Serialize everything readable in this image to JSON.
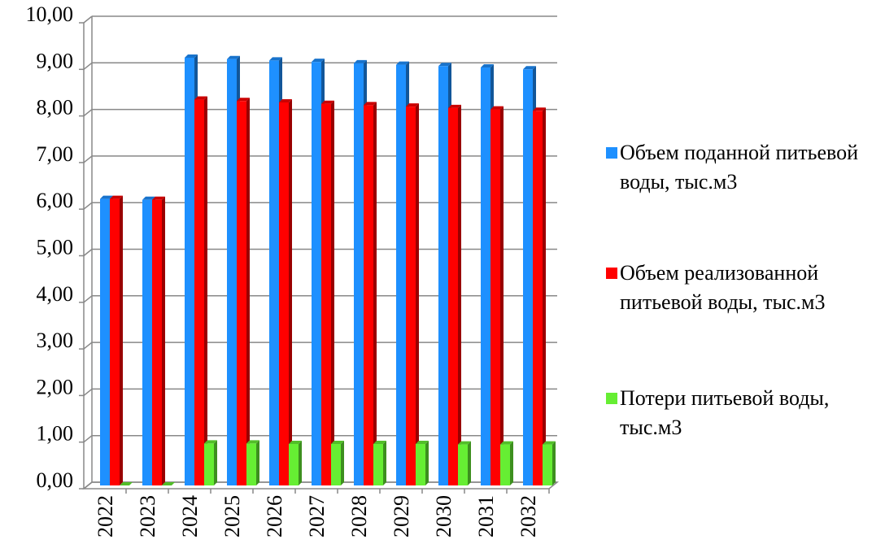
{
  "chart_data": {
    "type": "bar",
    "categories": [
      "2022",
      "2023",
      "2024",
      "2025",
      "2026",
      "2027",
      "2028",
      "2029",
      "2030",
      "2031",
      "2032"
    ],
    "series": [
      {
        "name": "Объем поданной питьевой воды, тыс.м3",
        "color": "#1e90ff",
        "values": [
          6.15,
          6.13,
          9.18,
          9.15,
          9.12,
          9.09,
          9.06,
          9.03,
          9.0,
          8.97,
          8.93
        ]
      },
      {
        "name": "Объем реализованной питьевой воды, тыс.м3",
        "color": "#ff0000",
        "values": [
          6.15,
          6.13,
          8.28,
          8.25,
          8.22,
          8.19,
          8.16,
          8.13,
          8.1,
          8.07,
          8.04
        ]
      },
      {
        "name": "Потери питьевой воды, тыс.м3",
        "color": "#66ee33",
        "values": [
          0,
          0,
          0.9,
          0.9,
          0.89,
          0.89,
          0.89,
          0.89,
          0.88,
          0.88,
          0.88
        ]
      }
    ],
    "ylim": [
      0,
      10
    ],
    "yticks": [
      {
        "value": 0,
        "label": "0,00"
      },
      {
        "value": 1,
        "label": "1,00"
      },
      {
        "value": 2,
        "label": "2,00"
      },
      {
        "value": 3,
        "label": "3,00"
      },
      {
        "value": 4,
        "label": "4,00"
      },
      {
        "value": 5,
        "label": "5,00"
      },
      {
        "value": 6,
        "label": "6,00"
      },
      {
        "value": 7,
        "label": "7,00"
      },
      {
        "value": 8,
        "label": "8,00"
      },
      {
        "value": 9,
        "label": "9,00"
      },
      {
        "value": 10,
        "label": "10,00"
      }
    ],
    "grid": true,
    "legend": "right"
  }
}
